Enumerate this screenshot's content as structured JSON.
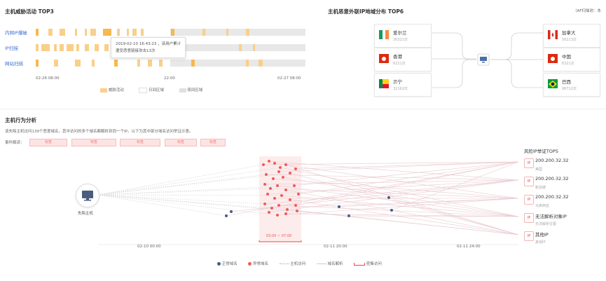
{
  "top_left": {
    "title": "主机威胁活动 TOP3",
    "rows": [
      {
        "label": "内网IP爆破"
      },
      {
        "label": "IP扫描"
      },
      {
        "label": "网站扫描"
      }
    ],
    "x_ticks": [
      "02-26  08:00",
      "22:00",
      "02-27  08:00"
    ],
    "tooltip": {
      "line1": "2019-02-10  16:43:23 ，该用户累计",
      "line2": "遭受恶意链接攻击13次"
    },
    "legend": [
      "威胁活动",
      "日间区域",
      "夜间区域"
    ],
    "colors": {
      "threat": "#f9cf8a",
      "threat_strong": "#f6b94e",
      "day": "#ffffff",
      "night": "#e8e8e8"
    }
  },
  "top_right": {
    "title": "主机恶意外联IP地域分布 TOP6",
    "note": "（AF扫描池：本",
    "left_cards": [
      {
        "name": "爱尔兰",
        "count": "26321次",
        "flag": "ireland-flag-icon"
      },
      {
        "name": "香港",
        "count": "6221次",
        "flag": "hongkong-flag-icon"
      },
      {
        "name": "贝宁",
        "count": "32162次",
        "flag": "benin-flag-icon"
      }
    ],
    "right_cards": [
      {
        "name": "加拿大",
        "count": "56213次",
        "flag": "canada-flag-icon"
      },
      {
        "name": "中国",
        "count": "6321次",
        "flag": "china-flag-icon"
      },
      {
        "name": "巴西",
        "count": "98712次",
        "flag": "brazil-flag-icon"
      }
    ]
  },
  "behavior": {
    "title": "主机行为分析",
    "desc": "该失陷主机访问139个恶意域名，其中访问的多个域名都解析到同一个IP。以下为其中部分域名访问举证示意。",
    "event_label": "事件解读：",
    "tags": [
      "标签",
      "标签",
      "标签",
      "标签",
      "标签"
    ],
    "host_label": "失陷主机",
    "range_label": "03:00 ~ 07:00",
    "x_ticks": [
      "02-10  00:00",
      "02-11  20:00",
      "02-11  24:00"
    ],
    "ip_title": "风险IP举证TOP5",
    "ip_list": [
      {
        "badge": "IP",
        "ip": "200.200.32.32",
        "loc": "美国"
      },
      {
        "badge": "IP",
        "ip": "200.200.32.32",
        "loc": "新加坡"
      },
      {
        "badge": "IP",
        "ip": "200.200.32.32",
        "loc": "马来西亚"
      },
      {
        "badge": "IP",
        "ip": "无法解析对象IP",
        "loc": "无法解析位置"
      },
      {
        "badge": "IP",
        "ip": "其他IP",
        "loc": "其他IP"
      }
    ],
    "legend": [
      "正常域名",
      "异常域名",
      "主机访问",
      "域名解析",
      "密集访问"
    ],
    "colors": {
      "normal": "#4a5d7e",
      "abnormal": "#f25a5a",
      "range_bg": "#fdebeb"
    }
  }
}
